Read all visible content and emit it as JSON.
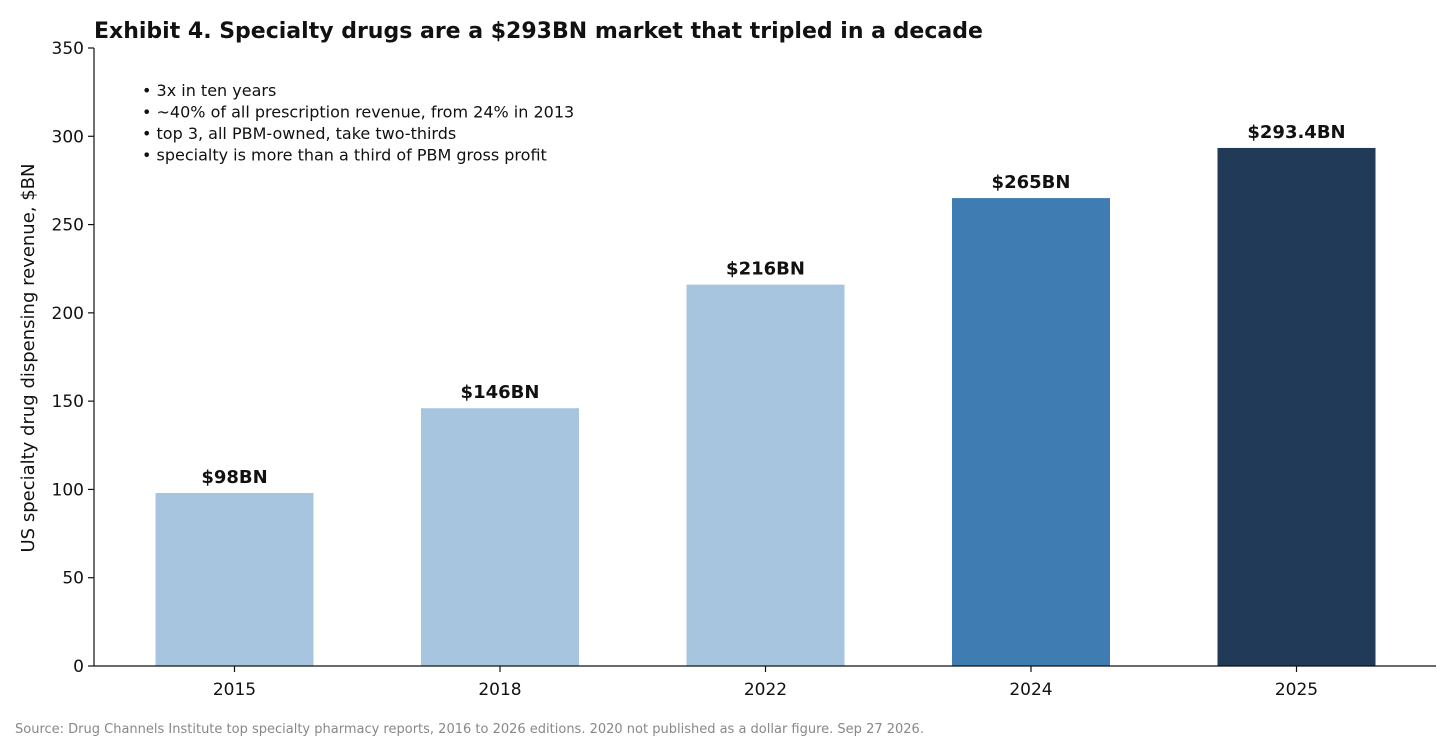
{
  "chart_data": {
    "type": "bar",
    "title": "Exhibit 4. Specialty drugs are a $293BN market that tripled in a decade",
    "ylabel": "US specialty drug dispensing revenue, $BN",
    "xlabel": "",
    "categories": [
      "2015",
      "2018",
      "2022",
      "2024",
      "2025"
    ],
    "values": [
      98,
      146,
      216,
      265,
      293.4
    ],
    "data_labels": [
      "$98BN",
      "$146BN",
      "$216BN",
      "$265BN",
      "$293.4BN"
    ],
    "bar_colors": [
      "#a8c5e0",
      "#a8c5e0",
      "#a8c5e0",
      "#3f7cb2",
      "#213a57"
    ],
    "ylim": [
      0,
      350
    ],
    "yticks": [
      0,
      50,
      100,
      150,
      200,
      250,
      300,
      350
    ],
    "grid": false,
    "annotations": [
      "• 3x in ten years",
      "• ~40% of all prescription revenue, from 24% in 2013",
      "• top 3, all PBM-owned, take two-thirds",
      "• specialty is more than a third of PBM gross profit"
    ],
    "source": "Source: Drug Channels Institute top specialty pharmacy reports, 2016 to 2026 editions. 2020 not published as a dollar figure. Sep 27 2026."
  }
}
